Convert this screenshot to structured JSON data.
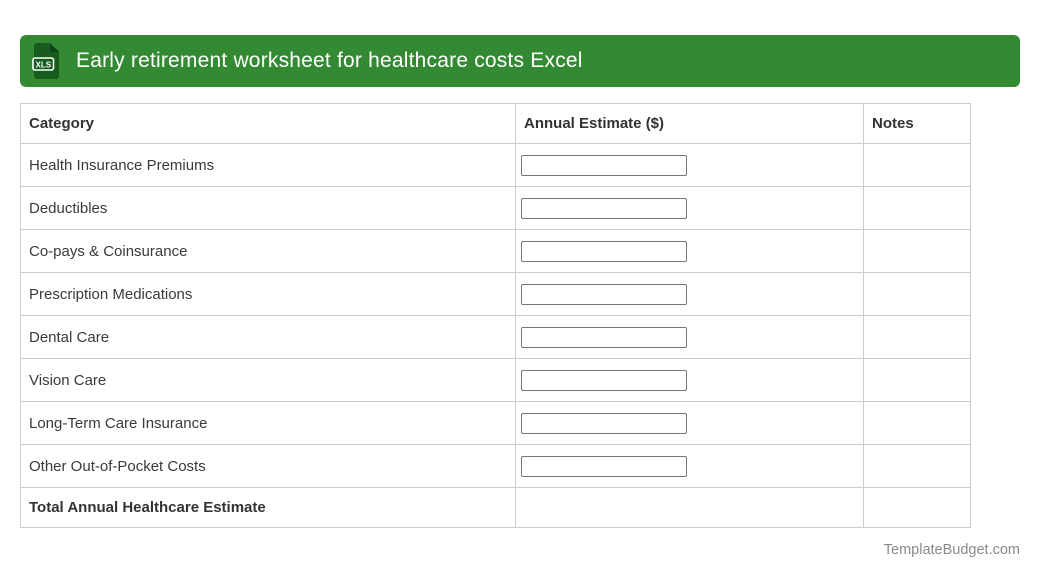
{
  "header": {
    "title": "Early retirement worksheet for healthcare costs Excel",
    "file_icon_label": "XLS",
    "bar_color": "#338a33",
    "icon_color": "#175b1f"
  },
  "table": {
    "columns": [
      {
        "label": "Category"
      },
      {
        "label": "Annual Estimate ($)"
      },
      {
        "label": "Notes"
      }
    ],
    "rows": [
      {
        "category": "Health Insurance Premiums",
        "annual_estimate_value": "",
        "notes": "",
        "has_input": true,
        "bold": false
      },
      {
        "category": "Deductibles",
        "annual_estimate_value": "",
        "notes": "",
        "has_input": true,
        "bold": false
      },
      {
        "category": "Co-pays & Coinsurance",
        "annual_estimate_value": "",
        "notes": "",
        "has_input": true,
        "bold": false
      },
      {
        "category": "Prescription Medications",
        "annual_estimate_value": "",
        "notes": "",
        "has_input": true,
        "bold": false
      },
      {
        "category": "Dental Care",
        "annual_estimate_value": "",
        "notes": "",
        "has_input": true,
        "bold": false
      },
      {
        "category": "Vision Care",
        "annual_estimate_value": "",
        "notes": "",
        "has_input": true,
        "bold": false
      },
      {
        "category": "Long-Term Care Insurance",
        "annual_estimate_value": "",
        "notes": "",
        "has_input": true,
        "bold": false
      },
      {
        "category": "Other Out-of-Pocket Costs",
        "annual_estimate_value": "",
        "notes": "",
        "has_input": true,
        "bold": false
      },
      {
        "category": "Total Annual Healthcare Estimate",
        "annual_estimate_value": "",
        "notes": "",
        "has_input": false,
        "bold": true
      }
    ]
  },
  "footer": {
    "credit": "TemplateBudget.com"
  }
}
